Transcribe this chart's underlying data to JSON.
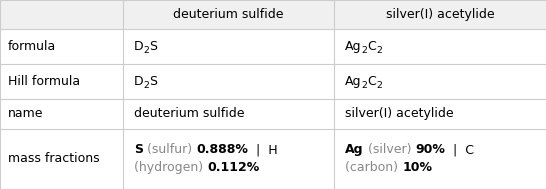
{
  "col_headers": [
    "",
    "deuterium sulfide",
    "silver(I) acetylide"
  ],
  "rows": [
    {
      "label": "formula",
      "col1": [
        [
          "D",
          false
        ],
        [
          "2",
          true
        ],
        [
          "S",
          false
        ]
      ],
      "col2": [
        [
          "Ag",
          false
        ],
        [
          "2",
          true
        ],
        [
          "C",
          false
        ],
        [
          "2",
          true
        ]
      ]
    },
    {
      "label": "Hill formula",
      "col1": [
        [
          "D",
          false
        ],
        [
          "2",
          true
        ],
        [
          "S",
          false
        ]
      ],
      "col2": [
        [
          "Ag",
          false
        ],
        [
          "2",
          true
        ],
        [
          "C",
          false
        ],
        [
          "2",
          true
        ]
      ]
    },
    {
      "label": "name",
      "col1_plain": "deuterium sulfide",
      "col2_plain": "silver(I) acetylide"
    },
    {
      "label": "mass fractions",
      "col1_mixed": [
        {
          "text": "S",
          "bold": true,
          "color": "#000000"
        },
        {
          "text": " (sulfur) ",
          "bold": false,
          "color": "#888888"
        },
        {
          "text": "0.888%",
          "bold": true,
          "color": "#000000"
        },
        {
          "text": "  |  H",
          "bold": false,
          "color": "#000000"
        },
        {
          "text": "\n",
          "bold": false,
          "color": "#000000"
        },
        {
          "text": "(hydrogen) ",
          "bold": false,
          "color": "#888888"
        },
        {
          "text": "0.112%",
          "bold": true,
          "color": "#000000"
        }
      ],
      "col2_mixed": [
        {
          "text": "Ag",
          "bold": true,
          "color": "#000000"
        },
        {
          "text": " (silver) ",
          "bold": false,
          "color": "#888888"
        },
        {
          "text": "90%",
          "bold": true,
          "color": "#000000"
        },
        {
          "text": "  |  C",
          "bold": false,
          "color": "#000000"
        },
        {
          "text": "\n",
          "bold": false,
          "color": "#000000"
        },
        {
          "text": "(carbon) ",
          "bold": false,
          "color": "#888888"
        },
        {
          "text": "10%",
          "bold": true,
          "color": "#000000"
        }
      ]
    }
  ],
  "bg_color": "#ffffff",
  "header_bg": "#f5f5f5",
  "line_color": "#cccccc",
  "text_color": "#000000",
  "gray_color": "#888888",
  "font_size": 9,
  "header_font_size": 9
}
